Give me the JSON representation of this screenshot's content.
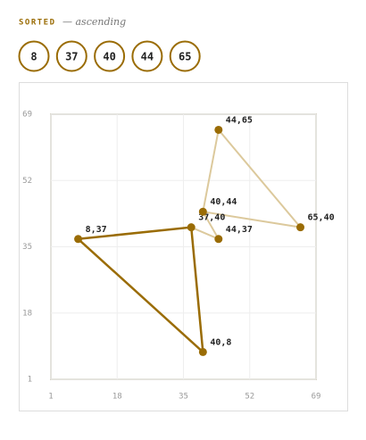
{
  "header": {
    "title": "SORTED",
    "subtitle": "— ascending"
  },
  "sorted": [
    8,
    37,
    40,
    44,
    65
  ],
  "chart_data": {
    "type": "scatter",
    "x": [
      8,
      37,
      40,
      44,
      65,
      44,
      40
    ],
    "y": [
      37,
      40,
      44,
      65,
      40,
      37,
      8
    ],
    "point_labels": [
      "8,37",
      "37,40",
      "40,44",
      "44,65",
      "65,40",
      "44,37",
      "40,8"
    ],
    "color": "#9a6c05",
    "series": [
      {
        "color": "#9a6c05",
        "x": [
          8,
          37,
          40,
          8
        ],
        "y": [
          37,
          40,
          8,
          37
        ]
      },
      {
        "color": "#dcc99c",
        "x": [
          40,
          44,
          65,
          40
        ],
        "y": [
          44,
          65,
          40,
          44
        ]
      },
      {
        "color": "#dcc99c",
        "x": [
          37,
          44,
          40
        ],
        "y": [
          40,
          37,
          44
        ]
      }
    ],
    "xlim": [
      1,
      69
    ],
    "ylim": [
      1,
      69
    ],
    "xticks": [
      1,
      18,
      35,
      52,
      69
    ],
    "yticks": [
      1,
      18,
      35,
      52,
      69
    ],
    "grid": true
  }
}
